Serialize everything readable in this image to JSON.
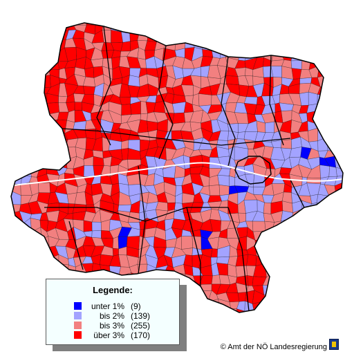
{
  "legend": {
    "title": "Legende:",
    "classes": [
      {
        "label": "unter 1%",
        "count": "(9)",
        "color": "#0000ff"
      },
      {
        "label": "bis 2%",
        "count": "(139)",
        "color": "#a3a3ff"
      },
      {
        "label": "bis 3%",
        "count": "(255)",
        "color": "#f28080"
      },
      {
        "label": "über 3%",
        "count": "(170)",
        "color": "#ff0000"
      }
    ]
  },
  "credit": "© Amt der NÖ Landesregierung",
  "map": {
    "border_color": "#000000",
    "river_color": "#ffffff"
  }
}
